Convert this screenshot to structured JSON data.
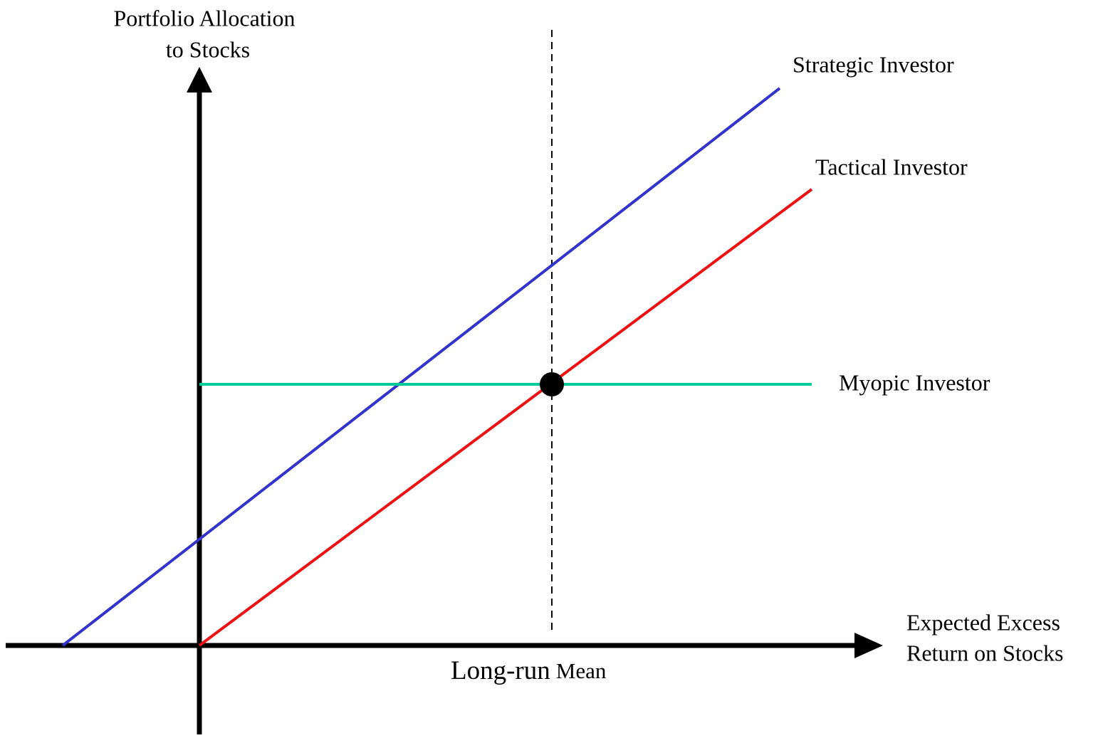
{
  "y_axis_label": [
    "Portfolio Allocation",
    "to Stocks"
  ],
  "x_axis_label": [
    "Expected Excess",
    "Return on Stocks"
  ],
  "lines": [
    {
      "label": "Strategic Investor"
    },
    {
      "label": "Tactical Investor"
    },
    {
      "label": "Myopic Investor"
    }
  ],
  "marker_label": {
    "main": "Long-run",
    "tail": "Mean"
  }
}
